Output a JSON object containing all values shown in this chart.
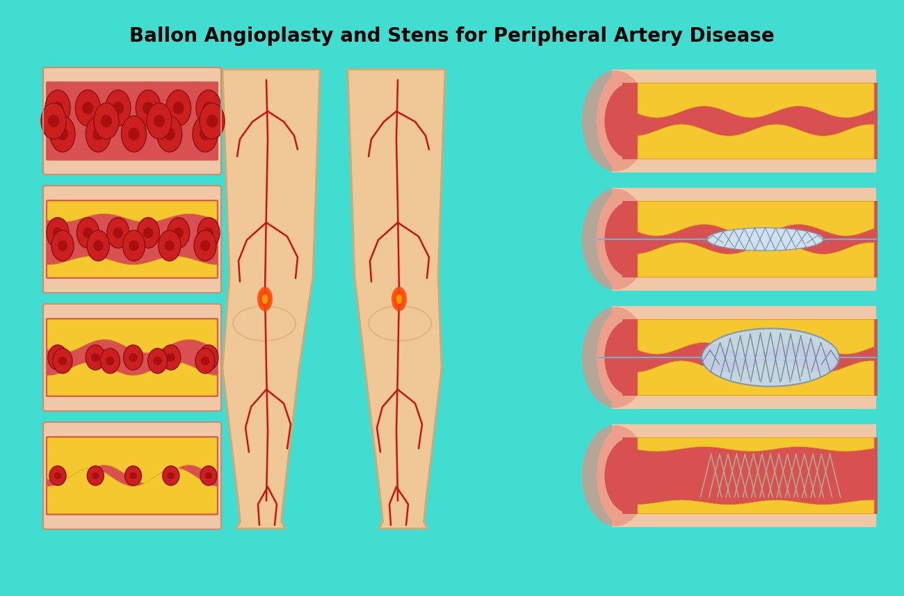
{
  "title": "Ballon Angioplasty and Stens for Peripheral Artery Disease",
  "bg_color": "#40DDD0",
  "title_fontsize": 20,
  "title_color": "#050505",
  "skin_color": "#F0C8A8",
  "wall_color": "#E89080",
  "lumen_color": "#D85050",
  "plaque_color": "#F5C830",
  "rbc_color": "#CC2020",
  "rbc_dark": "#8B1010",
  "stent_color": "#A0B8CC",
  "balloon_color": "#B8D8F0",
  "catheter_color": "#70B0D8",
  "leg_color": "#F0C898",
  "leg_edge": "#D4A870",
  "artery_line": "#CC1111"
}
